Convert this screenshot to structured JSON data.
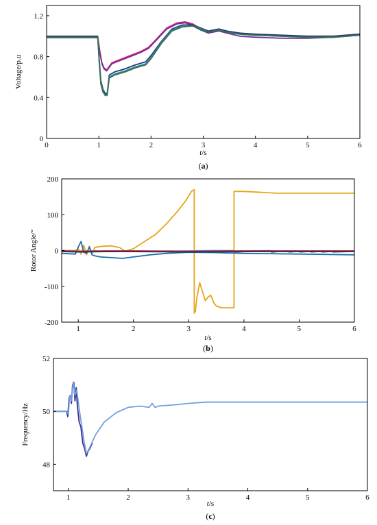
{
  "chart_data": [
    {
      "type": "line",
      "caption_prefix": "(",
      "caption_letter": "a",
      "caption_suffix": ")",
      "xlabel": "t",
      "xlabel_unit": "/s",
      "ylabel": "Voltage/p.u",
      "xlim": [
        0,
        6
      ],
      "ylim": [
        0,
        1.3
      ],
      "xticks": [
        "0",
        "1",
        "2",
        "3",
        "4",
        "5",
        "6"
      ],
      "yticks": [
        "0",
        "0.4",
        "0.8",
        "1.2"
      ],
      "grid": false,
      "series": [
        {
          "color": "#e0206a",
          "x": [
            0,
            0.98,
            1.02,
            1.06,
            1.1,
            1.15,
            1.25,
            1.4,
            1.6,
            1.8,
            1.95,
            2.1,
            2.3,
            2.5,
            2.65,
            2.8,
            2.95,
            3.1,
            3.2,
            3.3,
            3.45,
            3.7,
            4.0,
            4.5,
            5.0,
            5.5,
            6.0
          ],
          "y": [
            0.99,
            0.99,
            0.85,
            0.74,
            0.69,
            0.67,
            0.74,
            0.77,
            0.81,
            0.85,
            0.89,
            0.97,
            1.08,
            1.13,
            1.14,
            1.12,
            1.07,
            1.04,
            1.05,
            1.06,
            1.04,
            1.02,
            1.01,
            1.0,
            1.0,
            1.0,
            1.02
          ]
        },
        {
          "color": "#7030a0",
          "x": [
            0,
            0.98,
            1.02,
            1.06,
            1.1,
            1.15,
            1.25,
            1.4,
            1.6,
            1.8,
            1.95,
            2.1,
            2.3,
            2.5,
            2.65,
            2.8,
            2.95,
            3.1,
            3.2,
            3.3,
            3.45,
            3.7,
            4.0,
            4.5,
            5.0,
            5.5,
            6.0
          ],
          "y": [
            0.985,
            0.985,
            0.84,
            0.73,
            0.68,
            0.66,
            0.73,
            0.76,
            0.8,
            0.84,
            0.88,
            0.96,
            1.07,
            1.12,
            1.13,
            1.11,
            1.06,
            1.03,
            1.04,
            1.05,
            1.03,
            1.0,
            0.99,
            0.98,
            0.98,
            0.99,
            1.01
          ]
        },
        {
          "color": "#1f3b73",
          "x": [
            0,
            0.98,
            1.01,
            1.04,
            1.08,
            1.12,
            1.16,
            1.2,
            1.3,
            1.5,
            1.7,
            1.9,
            2.0,
            2.2,
            2.4,
            2.6,
            2.8,
            2.95,
            3.1,
            3.2,
            3.3,
            3.45,
            3.7,
            4.0,
            4.5,
            5.0,
            5.5,
            6.0
          ],
          "y": [
            1.0,
            1.0,
            0.76,
            0.56,
            0.48,
            0.44,
            0.44,
            0.62,
            0.65,
            0.68,
            0.72,
            0.75,
            0.81,
            0.95,
            1.07,
            1.11,
            1.11,
            1.08,
            1.05,
            1.06,
            1.07,
            1.05,
            1.03,
            1.02,
            1.01,
            1.0,
            1.0,
            1.02
          ]
        },
        {
          "color": "#2a8fb0",
          "x": [
            0,
            0.98,
            1.01,
            1.04,
            1.08,
            1.12,
            1.16,
            1.2,
            1.3,
            1.5,
            1.7,
            1.9,
            2.0,
            2.2,
            2.4,
            2.6,
            2.8,
            2.95,
            3.1,
            3.2,
            3.3,
            3.45,
            3.7,
            4.0,
            4.5,
            5.0,
            5.5,
            6.0
          ],
          "y": [
            0.99,
            0.99,
            0.74,
            0.54,
            0.46,
            0.42,
            0.42,
            0.6,
            0.63,
            0.66,
            0.7,
            0.73,
            0.79,
            0.94,
            1.06,
            1.1,
            1.1,
            1.07,
            1.04,
            1.05,
            1.06,
            1.04,
            1.02,
            1.01,
            1.0,
            0.99,
            0.99,
            1.01
          ]
        },
        {
          "color": "#3d6e4e",
          "x": [
            0,
            0.98,
            1.01,
            1.04,
            1.08,
            1.12,
            1.16,
            1.2,
            1.3,
            1.5,
            1.7,
            1.9,
            2.0,
            2.2,
            2.4,
            2.6,
            2.8,
            2.95,
            3.1,
            3.2,
            3.3,
            3.45,
            3.7,
            4.0,
            4.5,
            5.0,
            5.5,
            6.0
          ],
          "y": [
            0.99,
            0.99,
            0.73,
            0.53,
            0.45,
            0.43,
            0.43,
            0.59,
            0.62,
            0.65,
            0.69,
            0.72,
            0.78,
            0.93,
            1.05,
            1.09,
            1.1,
            1.06,
            1.04,
            1.05,
            1.06,
            1.04,
            1.02,
            1.01,
            1.0,
            0.99,
            0.99,
            1.01
          ]
        }
      ]
    },
    {
      "type": "line",
      "caption_prefix": "(",
      "caption_letter": "b",
      "caption_suffix": ")",
      "xlabel": "t",
      "xlabel_unit": "/s",
      "ylabel": "Rotor Angle/°",
      "xlim": [
        0.7,
        6
      ],
      "ylim": [
        -200,
        200
      ],
      "xticks": [
        "1",
        "2",
        "3",
        "4",
        "5",
        "6"
      ],
      "yticks": [
        "-200",
        "-100",
        "0",
        "100",
        "200"
      ],
      "grid": false,
      "series": [
        {
          "color": "#e8a317",
          "x": [
            0.7,
            0.95,
            1.0,
            1.05,
            1.1,
            1.15,
            1.2,
            1.25,
            1.3,
            1.35,
            1.45,
            1.6,
            1.75,
            1.85,
            2.0,
            2.2,
            2.4,
            2.6,
            2.8,
            2.95,
            3.05,
            3.1,
            3.1,
            3.12,
            3.15,
            3.2,
            3.25,
            3.3,
            3.35,
            3.4,
            3.45,
            3.5,
            3.6,
            3.8,
            3.82,
            3.82,
            4.0,
            4.6,
            5.0,
            5.5,
            6.0
          ],
          "y": [
            0,
            0,
            5,
            -10,
            15,
            -12,
            12,
            -8,
            8,
            10,
            12,
            13,
            8,
            -2,
            5,
            25,
            45,
            75,
            110,
            140,
            165,
            170,
            -175,
            -170,
            -130,
            -90,
            -115,
            -140,
            -130,
            -125,
            -145,
            -155,
            -160,
            -160,
            -160,
            165,
            165,
            160,
            160,
            160,
            160
          ]
        },
        {
          "color": "#5ab4dc",
          "x": [
            0.7,
            1.0,
            1.3,
            1.6,
            2.0,
            2.4,
            3.0,
            3.4,
            3.8,
            3.82,
            4.2,
            4.48,
            4.5,
            4.6,
            4.8,
            4.82,
            5.0,
            5.02,
            5.2,
            5.22,
            5.4,
            5.42,
            5.6,
            5.62,
            6.0
          ],
          "y": [
            0,
            -2,
            -1,
            -3,
            -2,
            -2,
            -1,
            0,
            0,
            -5,
            -1,
            0,
            -6,
            -3,
            -1,
            -5,
            -2,
            -5,
            -2,
            -5,
            -2,
            -5,
            -2,
            -5,
            -2
          ]
        },
        {
          "color": "#1a6fa8",
          "x": [
            0.7,
            0.95,
            1.0,
            1.05,
            1.1,
            1.15,
            1.2,
            1.25,
            1.3,
            1.4,
            1.6,
            1.8,
            2.0,
            2.3,
            2.6,
            3.0,
            3.5,
            4.0,
            5.0,
            6.0
          ],
          "y": [
            -8,
            -10,
            10,
            25,
            -5,
            -8,
            10,
            -12,
            -15,
            -18,
            -20,
            -22,
            -18,
            -12,
            -8,
            -5,
            -6,
            -8,
            -10,
            -12
          ]
        },
        {
          "color": "#c9203e",
          "x": [
            0.7,
            1.0,
            1.5,
            2.0,
            3.0,
            4.0,
            5.0,
            6.0
          ],
          "y": [
            -1,
            -2,
            -1,
            -1,
            -2,
            -1,
            -1,
            -1
          ]
        },
        {
          "color": "#223355",
          "x": [
            0.7,
            1.0,
            1.5,
            2.0,
            3.0,
            4.0,
            5.0,
            6.0
          ],
          "y": [
            -3,
            -4,
            -3,
            -3,
            -4,
            -3,
            -3,
            -3
          ]
        }
      ]
    },
    {
      "type": "line",
      "caption_prefix": "(",
      "caption_letter": "c",
      "caption_suffix": ")",
      "xlabel": "t",
      "xlabel_unit": "/s",
      "ylabel": "Frequency/Hz",
      "xlim": [
        0.75,
        6
      ],
      "ylim": [
        47,
        52
      ],
      "xticks": [
        "1",
        "2",
        "3",
        "4",
        "5",
        "6"
      ],
      "yticks": [
        "48",
        "50",
        "52"
      ],
      "grid": false,
      "series": [
        {
          "color": "#3a2f8c",
          "x": [
            0.75,
            0.97,
            0.99,
            1.01,
            1.03,
            1.05,
            1.07,
            1.09,
            1.11,
            1.13,
            1.15,
            1.18,
            1.21,
            1.24,
            1.27,
            1.3,
            1.33,
            1.36,
            1.4
          ],
          "y": [
            50,
            50,
            49.8,
            50.5,
            50.6,
            50.3,
            51.0,
            51.1,
            50.4,
            50.9,
            50.2,
            49.6,
            49.4,
            48.8,
            48.6,
            48.3,
            48.5,
            48.6,
            48.8
          ]
        },
        {
          "color": "#6f9fe0",
          "x": [
            0.75,
            0.97,
            1.0,
            1.02,
            1.05,
            1.08,
            1.11,
            1.14,
            1.18,
            1.22,
            1.26,
            1.3,
            1.35,
            1.45,
            1.6,
            1.8,
            2.0,
            2.2,
            2.35,
            2.4,
            2.45,
            2.5,
            2.8,
            3.0,
            3.3,
            4.0,
            5.0,
            6.0
          ],
          "y": [
            50,
            50,
            49.9,
            50.6,
            50.4,
            51.1,
            50.6,
            50.8,
            50.1,
            49.5,
            48.9,
            48.4,
            48.6,
            49.1,
            49.6,
            49.95,
            50.15,
            50.2,
            50.15,
            50.3,
            50.15,
            50.2,
            50.25,
            50.3,
            50.35,
            50.35,
            50.35,
            50.35
          ]
        }
      ]
    }
  ]
}
